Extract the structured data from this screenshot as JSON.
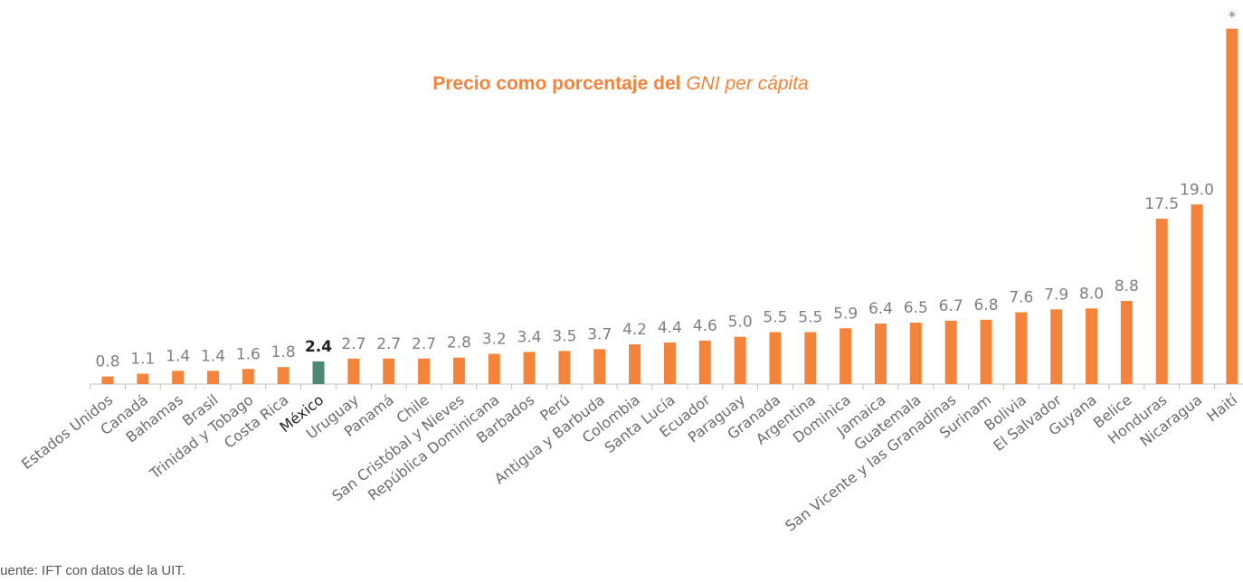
{
  "chart_data": {
    "type": "bar",
    "title_parts": [
      "Precio como porcentaje del ",
      "GNI per cápita"
    ],
    "source": "Fuente: IFT con datos de la UIT.",
    "categories": [
      "Estados Unidos",
      "Canadá",
      "Bahamas",
      "Brasil",
      "Trinidad y Tobago",
      "Costa Rica",
      "México",
      "Uruguay",
      "Panamá",
      "Chile",
      "San Cristóbal y Nieves",
      "República Dominicana",
      "Barbados",
      "Perú",
      "Antigua y Barbuda",
      "Colombia",
      "Santa Lucía",
      "Ecuador",
      "Paraguay",
      "Granada",
      "Argentina",
      "Dominica",
      "Jamaica",
      "Guatemala",
      "San Vicente y las Granadinas",
      "Surinam",
      "Bolivia",
      "El Salvador",
      "Guyana",
      "Belice",
      "Honduras",
      "Nicaragua",
      "Haití"
    ],
    "values": [
      0.8,
      1.1,
      1.4,
      1.4,
      1.6,
      1.8,
      2.4,
      2.7,
      2.7,
      2.7,
      2.8,
      3.2,
      3.4,
      3.5,
      3.7,
      4.2,
      4.4,
      4.6,
      5.0,
      5.5,
      5.5,
      5.9,
      6.4,
      6.5,
      6.7,
      6.8,
      7.6,
      7.9,
      8.0,
      8.8,
      17.5,
      19.0,
      37.6
    ],
    "value_labels": [
      "0.8",
      "1.1",
      "1.4",
      "1.4",
      "1.6",
      "1.8",
      "2.4",
      "2.7",
      "2.7",
      "2.7",
      "2.8",
      "3.2",
      "3.4",
      "3.5",
      "3.7",
      "4.2",
      "4.4",
      "4.6",
      "5.0",
      "5.5",
      "5.5",
      "5.9",
      "6.4",
      "6.5",
      "6.7",
      "6.8",
      "7.6",
      "7.9",
      "8.0",
      "8.8",
      "17.5",
      "19.0",
      "*"
    ],
    "color": "#f4843b",
    "colors": [
      "#f4843b",
      "#f4843b",
      "#f4843b",
      "#f4843b",
      "#f4843b",
      "#f4843b",
      "#4a8a72",
      "#f4843b",
      "#f4843b",
      "#f4843b",
      "#f4843b",
      "#f4843b",
      "#f4843b",
      "#f4843b",
      "#f4843b",
      "#f4843b",
      "#f4843b",
      "#f4843b",
      "#f4843b",
      "#f4843b",
      "#f4843b",
      "#f4843b",
      "#f4843b",
      "#f4843b",
      "#f4843b",
      "#f4843b",
      "#f4843b",
      "#f4843b",
      "#f4843b",
      "#f4843b",
      "#f4843b",
      "#f4843b",
      "#f4843b"
    ],
    "ylim": [
      0,
      38
    ]
  }
}
